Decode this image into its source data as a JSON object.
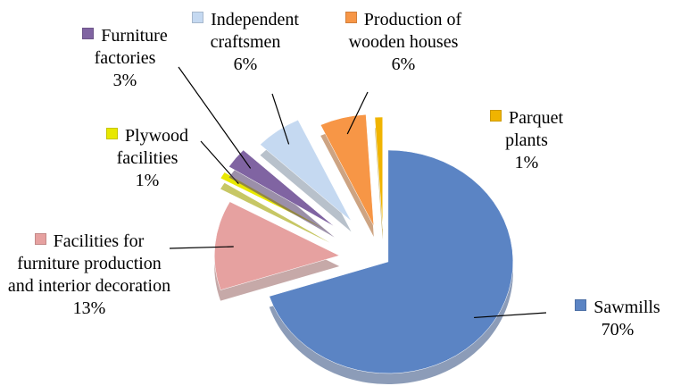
{
  "chart_data": {
    "type": "pie",
    "categories": [
      "Sawmills",
      "Facilities for furniture production and interior decoration",
      "Plywood facilities",
      "Furniture factories",
      "Independent craftsmen",
      "Production of wooden houses",
      "Parquet plants"
    ],
    "values": [
      70,
      13,
      1,
      3,
      6,
      6,
      1
    ],
    "value_labels": [
      "70%",
      "13%",
      "1%",
      "3%",
      "6%",
      "6%",
      "1%"
    ],
    "colors": [
      "#5b84c4",
      "#e6a1a0",
      "#e8e800",
      "#8064a2",
      "#c5d9f1",
      "#f79646",
      "#f0b400"
    ]
  }
}
